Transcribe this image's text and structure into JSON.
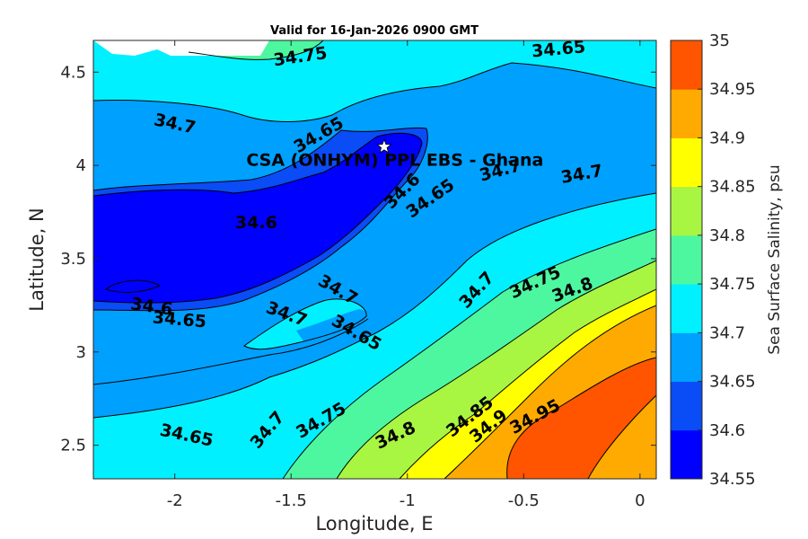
{
  "chart_data": {
    "type": "contour",
    "title": "Valid for 16-Jan-2026 0900 GMT",
    "xlabel": "Longitude, E",
    "ylabel": "Latitude, N",
    "xlim": [
      -2.35,
      0.07
    ],
    "ylim": [
      2.32,
      4.67
    ],
    "xticks": [
      "-2",
      "-1.5",
      "-1",
      "-0.5",
      "0"
    ],
    "xtick_values": [
      -2,
      -1.5,
      -1,
      -0.5,
      0
    ],
    "yticks": [
      "2.5",
      "3",
      "3.5",
      "4",
      "4.5"
    ],
    "ytick_values": [
      2.5,
      3,
      3.5,
      4,
      4.5
    ],
    "colorbar": {
      "label": "Sea Surface Salinity, psu",
      "range": [
        34.55,
        35
      ],
      "ticks": [
        "34.55",
        "34.6",
        "34.65",
        "34.7",
        "34.75",
        "34.8",
        "34.85",
        "34.9",
        "34.95",
        "35"
      ],
      "colors": [
        "#0000ff",
        "#0a4cf5",
        "#00a0ff",
        "#00f0ff",
        "#4cf7a0",
        "#a8f542",
        "#ffff00",
        "#ffaa00",
        "#ff5500"
      ]
    },
    "site": {
      "name": "CSA (ONHYM) PPL EBS  - Ghana",
      "lon": -1.1,
      "lat": 4.1,
      "marker": "white-star"
    },
    "contour_labels": [
      {
        "text": "34.75",
        "lon": -1.46,
        "lat": 4.58,
        "angle": -8
      },
      {
        "text": "34.65",
        "lon": -0.35,
        "lat": 4.62,
        "angle": -5
      },
      {
        "text": "34.7",
        "lon": -2.0,
        "lat": 4.22,
        "angle": 12
      },
      {
        "text": "34.65",
        "lon": -1.38,
        "lat": 4.16,
        "angle": -30
      },
      {
        "text": "34.6",
        "lon": -1.65,
        "lat": 3.69,
        "angle": 0
      },
      {
        "text": "34.6",
        "lon": -1.02,
        "lat": 3.86,
        "angle": -45
      },
      {
        "text": "34.65",
        "lon": -0.9,
        "lat": 3.82,
        "angle": -35
      },
      {
        "text": "34.7",
        "lon": -0.6,
        "lat": 3.97,
        "angle": -15
      },
      {
        "text": "34.7",
        "lon": -0.25,
        "lat": 3.95,
        "angle": -10
      },
      {
        "text": "34.6",
        "lon": -2.1,
        "lat": 3.24,
        "angle": 8
      },
      {
        "text": "34.65",
        "lon": -1.98,
        "lat": 3.17,
        "angle": 5
      },
      {
        "text": "34.7",
        "lon": -1.52,
        "lat": 3.2,
        "angle": 20
      },
      {
        "text": "34.7",
        "lon": -1.3,
        "lat": 3.33,
        "angle": 30
      },
      {
        "text": "34.65",
        "lon": -1.22,
        "lat": 3.1,
        "angle": 30
      },
      {
        "text": "34.7",
        "lon": -0.7,
        "lat": 3.33,
        "angle": -48
      },
      {
        "text": "34.75",
        "lon": -0.45,
        "lat": 3.37,
        "angle": -25
      },
      {
        "text": "34.8",
        "lon": -0.29,
        "lat": 3.33,
        "angle": -20
      },
      {
        "text": "34.65",
        "lon": -1.95,
        "lat": 2.55,
        "angle": 12
      },
      {
        "text": "34.7",
        "lon": -1.6,
        "lat": 2.58,
        "angle": -50
      },
      {
        "text": "34.75",
        "lon": -1.37,
        "lat": 2.63,
        "angle": -30
      },
      {
        "text": "34.8",
        "lon": -1.05,
        "lat": 2.55,
        "angle": -25
      },
      {
        "text": "34.85",
        "lon": -0.73,
        "lat": 2.65,
        "angle": -38
      },
      {
        "text": "34.9",
        "lon": -0.65,
        "lat": 2.6,
        "angle": -38
      },
      {
        "text": "34.95",
        "lon": -0.45,
        "lat": 2.65,
        "angle": -28
      }
    ]
  }
}
